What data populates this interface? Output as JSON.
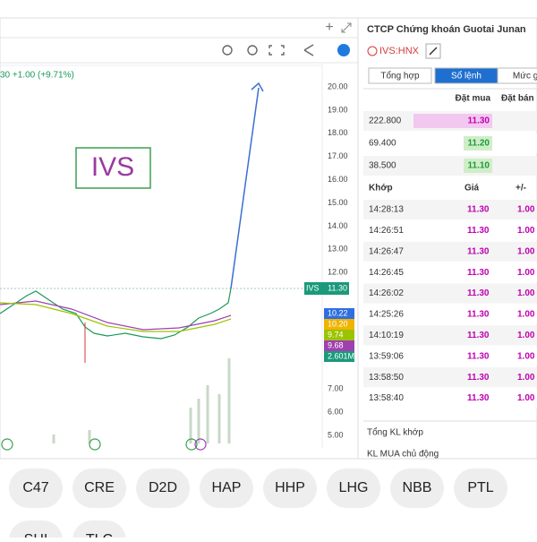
{
  "chart_panel": {
    "legend": "30 +1.00 (+9.71%)",
    "annotation": "IVS",
    "price_axis": [
      "20.00",
      "19.00",
      "18.00",
      "17.00",
      "16.00",
      "15.00",
      "14.00",
      "13.00",
      "12.00"
    ],
    "lower_axis": [
      "7.00",
      "6.00",
      "5.00"
    ],
    "last_price_tag": {
      "symbol": "IVS",
      "price": "11.30"
    },
    "indicator_tags": [
      {
        "text": "10.22",
        "color": "#2f6fe0"
      },
      {
        "text": "10.20",
        "color": "#f0b400"
      },
      {
        "text": "9.74",
        "color": "#9bc400"
      },
      {
        "text": "9.68",
        "color": "#a040b0"
      },
      {
        "text": "2.601M",
        "color": "#1a9a7a"
      }
    ]
  },
  "order_panel": {
    "company": "CTCP Chứng khoán Guotai Junan",
    "ticker": "IVS:HNX",
    "tabs": [
      "Tổng hợp",
      "Sổ lệnh",
      "Mức giá"
    ],
    "book_header": [
      "Đặt mua",
      "Đặt bán"
    ],
    "book_rows": [
      {
        "volume": "222.800",
        "price": "11.30"
      },
      {
        "volume": "69.400",
        "price": "11.20"
      },
      {
        "volume": "38.500",
        "price": "11.10"
      }
    ],
    "trades_header": [
      "Khớp",
      "Giá",
      "+/-"
    ],
    "trades": [
      [
        "14:28:13",
        "11.30",
        "1.00"
      ],
      [
        "14:26:51",
        "11.30",
        "1.00"
      ],
      [
        "14:26:47",
        "11.30",
        "1.00"
      ],
      [
        "14:26:45",
        "11.30",
        "1.00"
      ],
      [
        "14:26:02",
        "11.30",
        "1.00"
      ],
      [
        "14:25:26",
        "11.30",
        "1.00"
      ],
      [
        "14:10:19",
        "11.30",
        "1.00"
      ],
      [
        "13:59:06",
        "11.30",
        "1.00"
      ],
      [
        "13:58:50",
        "11.30",
        "1.00"
      ],
      [
        "13:58:40",
        "11.30",
        "1.00"
      ]
    ],
    "footer": [
      "Tổng KL khớp",
      "KL MUA chủ động"
    ]
  },
  "chips": [
    "C47",
    "CRE",
    "D2D",
    "HAP",
    "HHP",
    "LHG",
    "NBB",
    "PTL",
    "SHI",
    "TLC"
  ]
}
